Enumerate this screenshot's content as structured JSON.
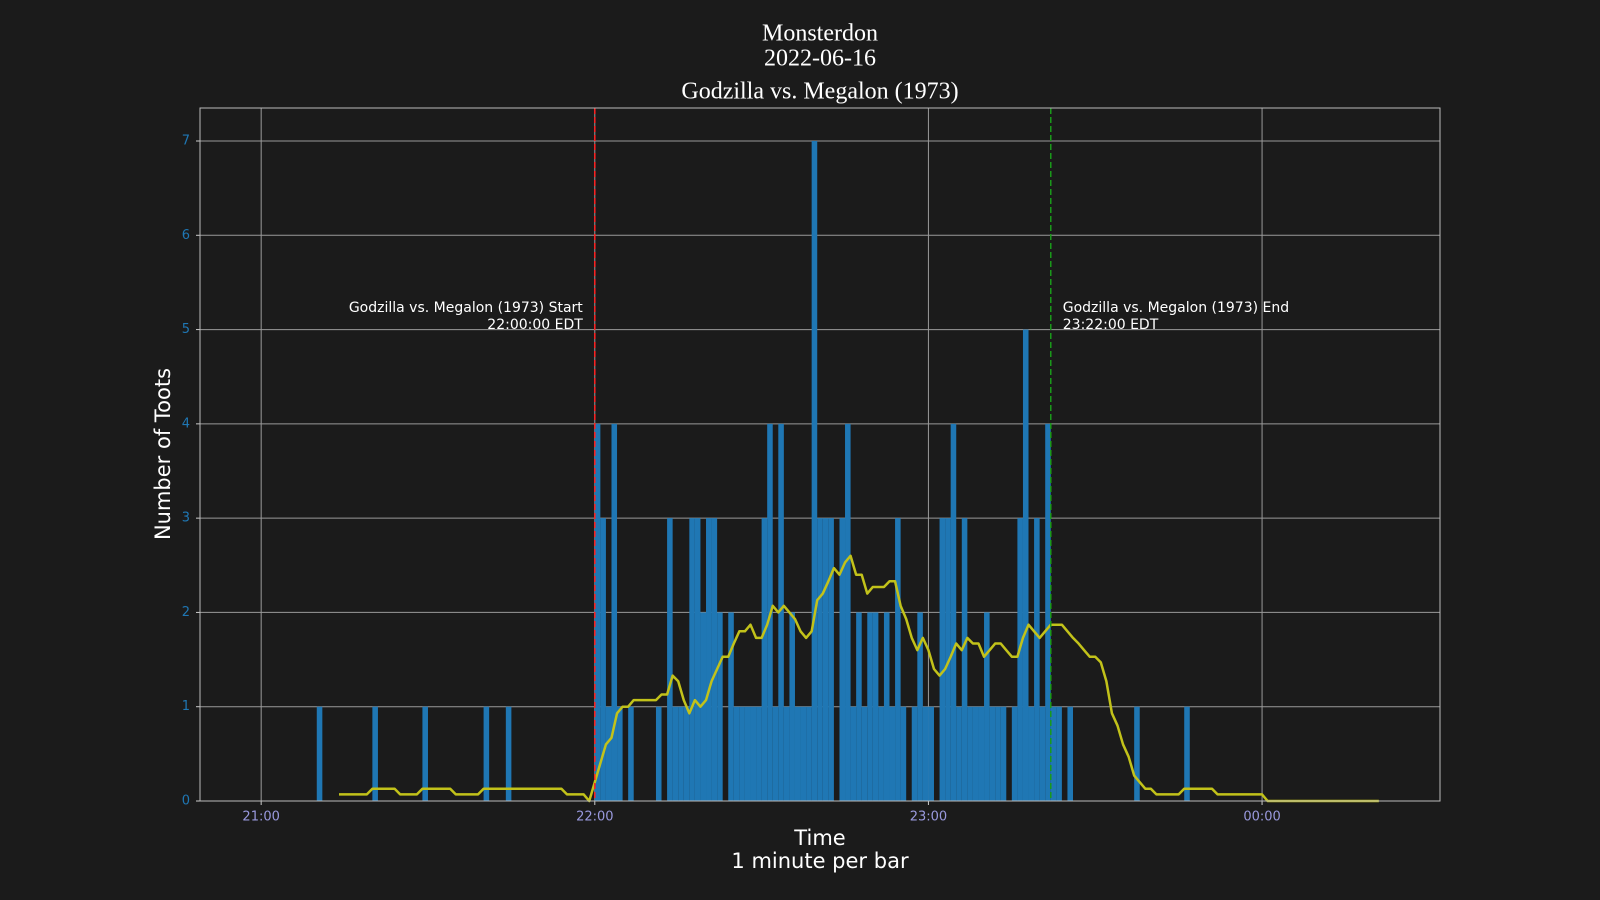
{
  "chart_data": {
    "type": "bar",
    "title": [
      "Monsterdon",
      "2022-06-16",
      "Godzilla vs. Megalon (1973)"
    ],
    "xlabel": [
      "Time",
      "1 minute per bar"
    ],
    "ylabel": "Number of Toots",
    "xlim": [
      "20:49",
      "00:32"
    ],
    "xticks": [
      "21:00",
      "22:00",
      "23:00",
      "00:00"
    ],
    "ylim": [
      0,
      7.35
    ],
    "yticks": [
      0,
      1,
      2,
      3,
      4,
      5,
      6,
      7
    ],
    "grid": true,
    "series": [
      {
        "type": "bar",
        "color": "#1f77b4",
        "x": [
          "21:10",
          "21:20",
          "21:29",
          "21:40",
          "21:44",
          "22:00",
          "22:01",
          "22:02",
          "22:03",
          "22:04",
          "22:06",
          "22:11",
          "22:13",
          "22:14",
          "22:15",
          "22:16",
          "22:17",
          "22:18",
          "22:19",
          "22:20",
          "22:21",
          "22:22",
          "22:24",
          "22:25",
          "22:26",
          "22:27",
          "22:28",
          "22:29",
          "22:30",
          "22:31",
          "22:32",
          "22:33",
          "22:34",
          "22:35",
          "22:36",
          "22:37",
          "22:38",
          "22:39",
          "22:40",
          "22:41",
          "22:42",
          "22:44",
          "22:45",
          "22:46",
          "22:47",
          "22:48",
          "22:49",
          "22:50",
          "22:51",
          "22:52",
          "22:53",
          "22:54",
          "22:55",
          "22:57",
          "22:58",
          "22:59",
          "23:00",
          "23:02",
          "23:03",
          "23:04",
          "23:05",
          "23:06",
          "23:07",
          "23:08",
          "23:09",
          "23:10",
          "23:11",
          "23:12",
          "23:13",
          "23:15",
          "23:16",
          "23:17",
          "23:18",
          "23:19",
          "23:20",
          "23:21",
          "23:22",
          "23:23",
          "23:25",
          "23:37",
          "23:46"
        ],
        "values": [
          1,
          1,
          1,
          1,
          1,
          4,
          3,
          1,
          4,
          1,
          1,
          1,
          3,
          1,
          1,
          1,
          3,
          3,
          2,
          3,
          3,
          2,
          2,
          1,
          1,
          1,
          1,
          1,
          3,
          4,
          1,
          4,
          1,
          2,
          1,
          1,
          1,
          7,
          3,
          3,
          3,
          3,
          4,
          1,
          2,
          1,
          2,
          2,
          1,
          2,
          1,
          3,
          1,
          1,
          2,
          1,
          1,
          3,
          3,
          4,
          1,
          3,
          1,
          1,
          1,
          2,
          1,
          1,
          1,
          1,
          3,
          5,
          1,
          3,
          1,
          4,
          1,
          1,
          1,
          1,
          1
        ]
      },
      {
        "type": "line",
        "color": "#c2c21a",
        "x": [
          "21:14",
          "21:19",
          "21:20",
          "21:24",
          "21:25",
          "21:28",
          "21:29",
          "21:34",
          "21:35",
          "21:39",
          "21:40",
          "21:54",
          "21:55",
          "21:58",
          "21:59",
          "22:00",
          "22:01",
          "22:02",
          "22:03",
          "22:04",
          "22:05",
          "22:06",
          "22:07",
          "22:11",
          "22:12",
          "22:13",
          "22:14",
          "22:15",
          "22:16",
          "22:17",
          "22:18",
          "22:19",
          "22:20",
          "22:21",
          "22:23",
          "22:24",
          "22:25",
          "22:26",
          "22:27",
          "22:28",
          "22:29",
          "22:30",
          "22:31",
          "22:32",
          "22:33",
          "22:34",
          "22:35",
          "22:36",
          "22:37",
          "22:38",
          "22:39",
          "22:40",
          "22:41",
          "22:42",
          "22:43",
          "22:44",
          "22:45",
          "22:46",
          "22:47",
          "22:48",
          "22:49",
          "22:50",
          "22:52",
          "22:53",
          "22:54",
          "22:55",
          "22:56",
          "22:57",
          "22:58",
          "22:59",
          "23:00",
          "23:01",
          "23:02",
          "23:03",
          "23:04",
          "23:05",
          "23:06",
          "23:07",
          "23:08",
          "23:09",
          "23:10",
          "23:11",
          "23:12",
          "23:13",
          "23:14",
          "23:15",
          "23:16",
          "23:17",
          "23:18",
          "23:19",
          "23:20",
          "23:21",
          "23:22",
          "23:24",
          "23:25",
          "23:26",
          "23:27",
          "23:28",
          "23:29",
          "23:30",
          "23:31",
          "23:32",
          "23:33",
          "23:34",
          "23:35",
          "23:36",
          "23:37",
          "23:38",
          "23:39",
          "23:40",
          "23:41",
          "23:45",
          "23:46",
          "23:51",
          "23:52",
          "00:00",
          "00:01",
          "00:21"
        ],
        "values": [
          0.07,
          0.07,
          0.13,
          0.13,
          0.07,
          0.07,
          0.13,
          0.13,
          0.07,
          0.07,
          0.13,
          0.13,
          0.07,
          0.07,
          0,
          0.2,
          0.4,
          0.6,
          0.67,
          0.93,
          1,
          1,
          1.07,
          1.07,
          1.13,
          1.13,
          1.33,
          1.27,
          1.07,
          0.93,
          1.07,
          1,
          1.07,
          1.27,
          1.53,
          1.53,
          1.67,
          1.8,
          1.8,
          1.87,
          1.73,
          1.73,
          1.87,
          2.07,
          2,
          2.07,
          2,
          1.93,
          1.8,
          1.73,
          1.8,
          2.13,
          2.2,
          2.33,
          2.47,
          2.4,
          2.53,
          2.6,
          2.4,
          2.4,
          2.2,
          2.27,
          2.27,
          2.33,
          2.33,
          2.07,
          1.93,
          1.73,
          1.6,
          1.73,
          1.6,
          1.4,
          1.33,
          1.4,
          1.53,
          1.67,
          1.6,
          1.73,
          1.67,
          1.67,
          1.53,
          1.6,
          1.67,
          1.67,
          1.6,
          1.53,
          1.53,
          1.73,
          1.87,
          1.8,
          1.73,
          1.8,
          1.87,
          1.87,
          1.8,
          1.73,
          1.67,
          1.6,
          1.53,
          1.53,
          1.47,
          1.27,
          0.93,
          0.8,
          0.6,
          0.47,
          0.27,
          0.2,
          0.13,
          0.13,
          0.07,
          0.07,
          0.13,
          0.13,
          0.07,
          0.07,
          0,
          0
        ]
      }
    ],
    "markers": [
      {
        "x": "22:00",
        "color": "#ff2020",
        "label": [
          "Godzilla vs. Megalon (1973) Start",
          "22:00:00 EDT"
        ]
      },
      {
        "x": "23:22",
        "color": "#1a9a1a",
        "label": [
          "Godzilla vs. Megalon (1973) End",
          "23:22:00 EDT"
        ]
      }
    ]
  }
}
